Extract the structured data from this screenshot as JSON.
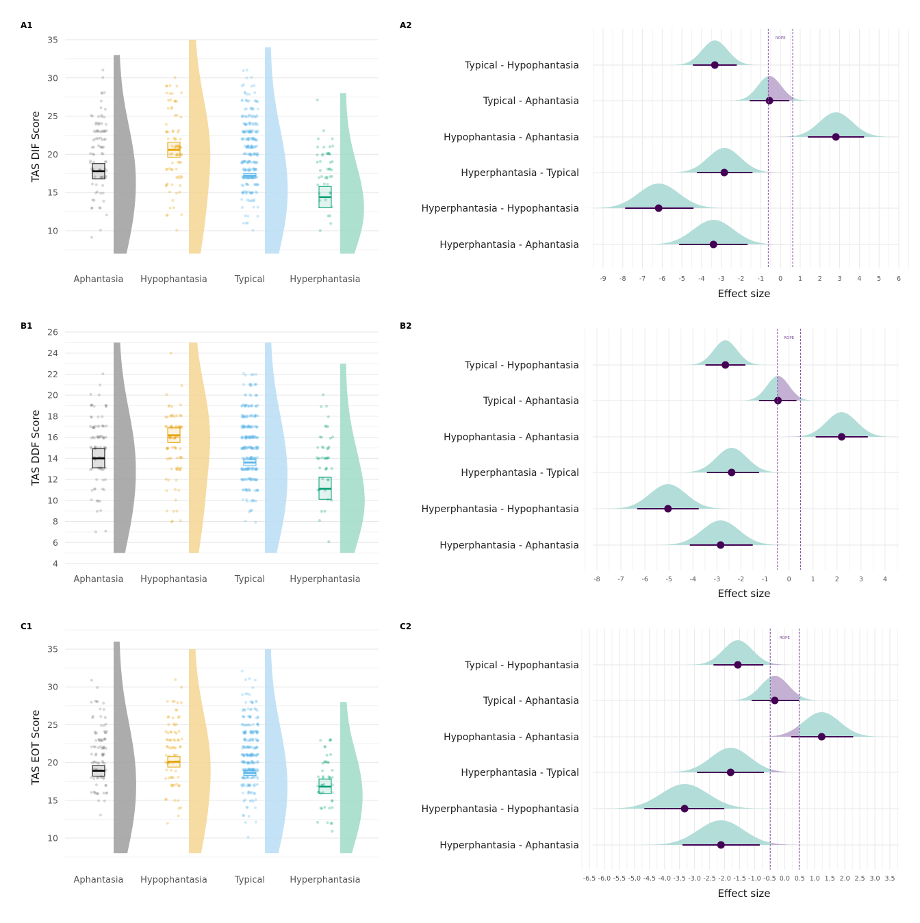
{
  "groups": [
    "Aphantasia",
    "Hypophantasia",
    "Typical",
    "Hyperphantasia"
  ],
  "colors": {
    "Aphantasia": {
      "fill": "#9e9e9e",
      "line": "#000000"
    },
    "Hypophantasia": {
      "fill": "#f4d592",
      "line": "#e69f00"
    },
    "Typical": {
      "fill": "#b8ddf4",
      "line": "#56b4e9"
    },
    "Hyperphantasia": {
      "fill": "#9fdac6",
      "line": "#009e73"
    },
    "posterior_fill": "#b3ddd8",
    "rope_fill": "#c4b0d2",
    "point": "#440154",
    "rope_line": "#8a4fa8"
  },
  "chart_data": [
    {
      "id": "A1",
      "panel_label": "A1",
      "type": "raincloud",
      "ylabel": "TAS DIF Score",
      "yticks": [
        10,
        15,
        20,
        25,
        30,
        35
      ],
      "ylim": [
        7,
        35
      ],
      "grid": true,
      "series": [
        {
          "name": "Aphantasia",
          "mean": 17.8,
          "se_low": 16.8,
          "se_high": 18.8,
          "min": 7,
          "max": 33
        },
        {
          "name": "Hypophantasia",
          "mean": 20.6,
          "se_low": 19.6,
          "se_high": 21.6,
          "min": 7,
          "max": 35
        },
        {
          "name": "Typical",
          "mean": 17.2,
          "se_low": 16.9,
          "se_high": 17.5,
          "min": 7,
          "max": 34
        },
        {
          "name": "Hyperphantasia",
          "mean": 14.4,
          "se_low": 13.0,
          "se_high": 15.8,
          "min": 7,
          "max": 28
        }
      ]
    },
    {
      "id": "A2",
      "panel_label": "A2",
      "type": "forest",
      "xlabel": "Effect size",
      "rope": [
        -0.62,
        0.62
      ],
      "rope_label": "ROPE",
      "xticks": [
        -9,
        -8,
        -7,
        -6,
        -5,
        -4,
        -3,
        -2,
        -1,
        0,
        1,
        2,
        3,
        4,
        5,
        6
      ],
      "xlim": [
        -9,
        6
      ],
      "grid": true,
      "rows": [
        {
          "label": "Typical - Hypophantasia",
          "estimate": -3.33,
          "ci": [
            -4.44,
            -2.22
          ]
        },
        {
          "label": "Typical - Aphantasia",
          "estimate": -0.56,
          "ci": [
            -1.56,
            0.45
          ]
        },
        {
          "label": "Hypophantasia - Aphantasia",
          "estimate": 2.81,
          "ci": [
            1.39,
            4.24
          ]
        },
        {
          "label": "Hyperphantasia - Typical",
          "estimate": -2.85,
          "ci": [
            -4.24,
            -1.42
          ]
        },
        {
          "label": "Hyperphantasia - Hypophantasia",
          "estimate": -6.18,
          "ci": [
            -7.88,
            -4.41
          ]
        },
        {
          "label": "Hyperphantasia - Aphantasia",
          "estimate": -3.4,
          "ci": [
            -5.14,
            -1.67
          ]
        }
      ]
    },
    {
      "id": "B1",
      "panel_label": "B1",
      "type": "raincloud",
      "ylabel": "TAS DDF Score",
      "yticks": [
        4,
        6,
        8,
        10,
        12,
        14,
        16,
        18,
        20,
        22,
        24,
        26
      ],
      "ylim": [
        5,
        25
      ],
      "grid": true,
      "series": [
        {
          "name": "Aphantasia",
          "mean": 14.0,
          "se_low": 13.1,
          "se_high": 14.9,
          "min": 5,
          "max": 25
        },
        {
          "name": "Hypophantasia",
          "mean": 16.2,
          "se_low": 15.5,
          "se_high": 16.9,
          "min": 5,
          "max": 25
        },
        {
          "name": "Typical",
          "mean": 13.6,
          "se_low": 13.3,
          "se_high": 13.9,
          "min": 5,
          "max": 25
        },
        {
          "name": "Hyperphantasia",
          "mean": 11.1,
          "se_low": 10.1,
          "se_high": 12.2,
          "min": 5,
          "max": 23
        }
      ]
    },
    {
      "id": "B2",
      "panel_label": "B2",
      "type": "forest",
      "xlabel": "Effect size",
      "rope": [
        -0.48,
        0.48
      ],
      "rope_label": "ROPE",
      "xticks": [
        -8,
        -7,
        -6,
        -5,
        -4,
        -3,
        -2,
        -1,
        0,
        1,
        2,
        3,
        4
      ],
      "xlim": [
        -8,
        4
      ],
      "grid": true,
      "rows": [
        {
          "label": "Typical - Hypophantasia",
          "estimate": -2.65,
          "ci": [
            -3.48,
            -1.82
          ]
        },
        {
          "label": "Typical - Aphantasia",
          "estimate": -0.46,
          "ci": [
            -1.25,
            0.31
          ]
        },
        {
          "label": "Hypophantasia - Aphantasia",
          "estimate": 2.19,
          "ci": [
            1.11,
            3.28
          ]
        },
        {
          "label": "Hyperphantasia - Typical",
          "estimate": -2.39,
          "ci": [
            -3.42,
            -1.25
          ]
        },
        {
          "label": "Hyperphantasia - Hypophantasia",
          "estimate": -5.04,
          "ci": [
            -6.32,
            -3.76
          ]
        },
        {
          "label": "Hyperphantasia - Aphantasia",
          "estimate": -2.85,
          "ci": [
            -4.13,
            -1.51
          ]
        }
      ]
    },
    {
      "id": "C1",
      "panel_label": "C1",
      "type": "raincloud",
      "ylabel": "TAS EOT Score",
      "yticks": [
        10,
        15,
        20,
        25,
        30,
        35
      ],
      "ylim": [
        8,
        36
      ],
      "grid": true,
      "series": [
        {
          "name": "Aphantasia",
          "mean": 18.9,
          "se_low": 18.2,
          "se_high": 19.6,
          "min": 8,
          "max": 36
        },
        {
          "name": "Hypophantasia",
          "mean": 20.1,
          "se_low": 19.4,
          "se_high": 20.8,
          "min": 8,
          "max": 35
        },
        {
          "name": "Typical",
          "mean": 18.6,
          "se_low": 18.3,
          "se_high": 18.9,
          "min": 8,
          "max": 35
        },
        {
          "name": "Hyperphantasia",
          "mean": 16.8,
          "se_low": 15.9,
          "se_high": 17.8,
          "min": 8,
          "max": 28
        }
      ]
    },
    {
      "id": "C2",
      "panel_label": "C2",
      "type": "forest",
      "xlabel": "Effect size",
      "rope": [
        -0.48,
        0.48
      ],
      "rope_label": "ROPE",
      "xticks": [
        "-6.5",
        "-6.0",
        "-5.5",
        "-5.0",
        "-4.5",
        "-4.0",
        "-3.5",
        "-3.0",
        "-2.5",
        "-2.0",
        "-1.5",
        "-1.0",
        "-0.5",
        "0.0",
        "0.5",
        "1.0",
        "1.5",
        "2.0",
        "2.5",
        "3.0",
        "3.5"
      ],
      "xlim": [
        -6.5,
        3.5
      ],
      "grid": true,
      "rows": [
        {
          "label": "Typical - Hypophantasia",
          "estimate": -1.56,
          "ci": [
            -2.37,
            -0.71
          ]
        },
        {
          "label": "Typical - Aphantasia",
          "estimate": -0.33,
          "ci": [
            -1.1,
            0.48
          ]
        },
        {
          "label": "Hypophantasia - Aphantasia",
          "estimate": 1.23,
          "ci": [
            0.22,
            2.28
          ]
        },
        {
          "label": "Hyperphantasia - Typical",
          "estimate": -1.8,
          "ci": [
            -2.92,
            -0.69
          ]
        },
        {
          "label": "Hyperphantasia - Hypophantasia",
          "estimate": -3.33,
          "ci": [
            -4.67,
            -2.01
          ]
        },
        {
          "label": "Hyperphantasia - Aphantasia",
          "estimate": -2.12,
          "ci": [
            -3.4,
            -0.83
          ]
        }
      ]
    }
  ]
}
